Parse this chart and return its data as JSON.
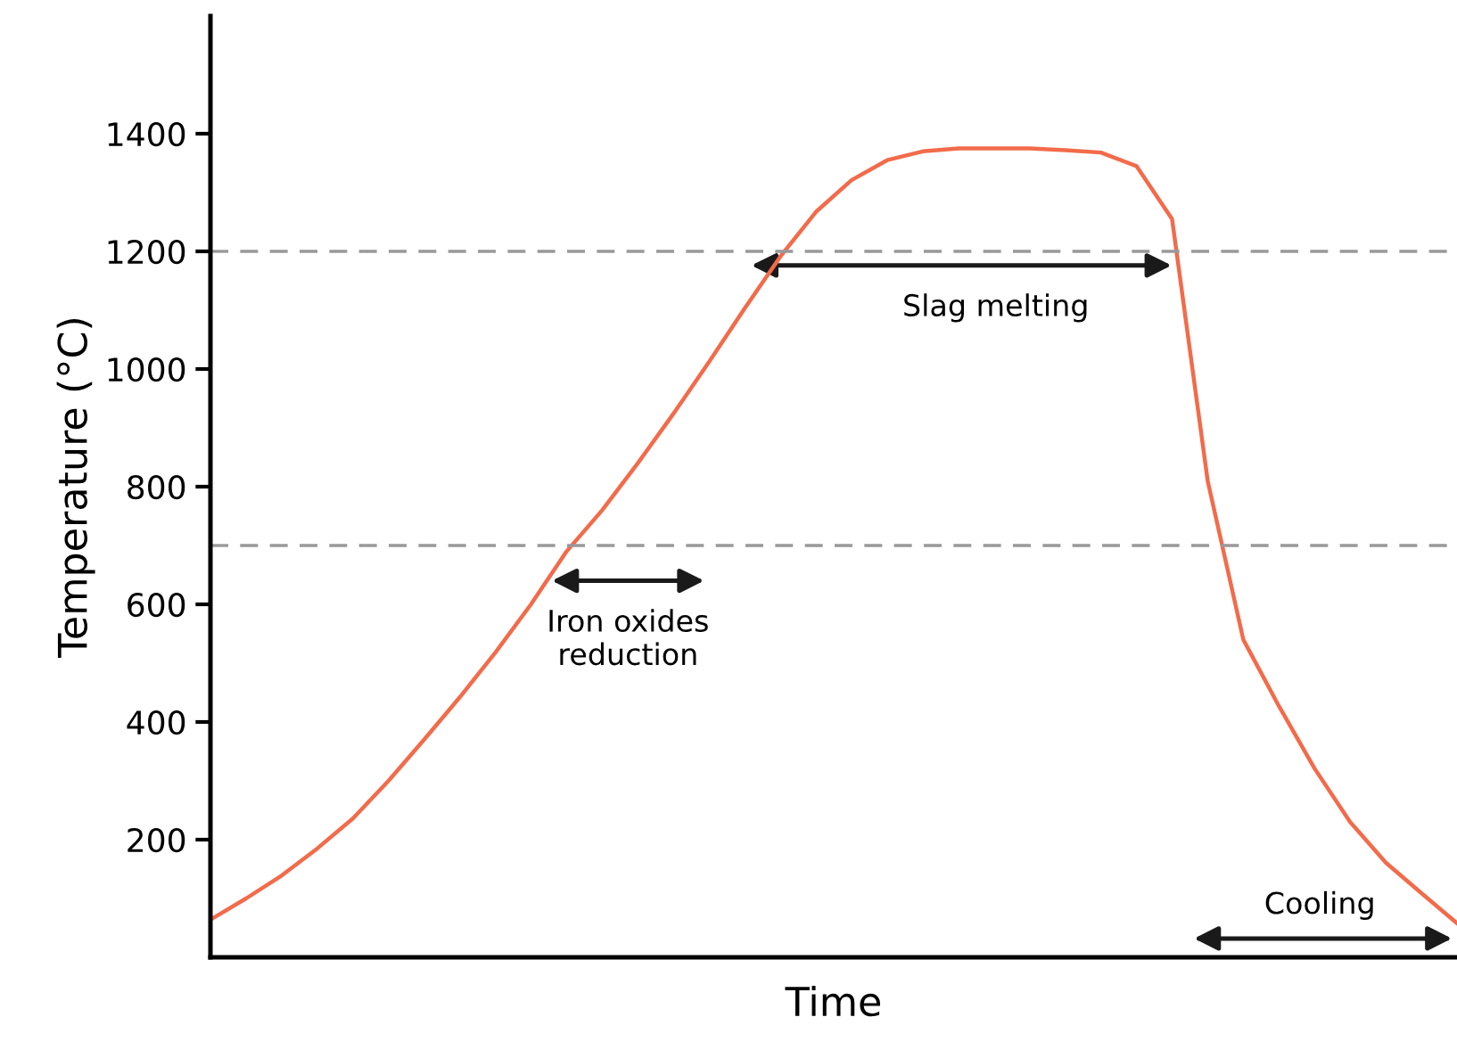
{
  "chart_data": {
    "type": "line",
    "xlabel": "Time",
    "ylabel": "Temperature (°C)",
    "categories": [
      null,
      null,
      null,
      null,
      null,
      null,
      null,
      null,
      null,
      null,
      null,
      null,
      null,
      null,
      null,
      null,
      null,
      null,
      null,
      null,
      null,
      null,
      null,
      null,
      null,
      null,
      null,
      null,
      null,
      null,
      null,
      null,
      null,
      null,
      null,
      null
    ],
    "series": [
      {
        "color": "#f26b4a",
        "values": [
          64,
          100,
          139,
          185,
          236,
          300,
          370,
          442,
          518,
          600,
          690,
          760,
          840,
          924,
          1012,
          1103,
          1191,
          1267,
          1321,
          1355,
          1370,
          1375,
          1375,
          1375,
          1372,
          1368,
          1345,
          1255,
          810,
          540,
          427,
          321,
          230,
          161,
          109,
          58
        ]
      }
    ],
    "ylim": [
      0,
      1600
    ],
    "yticks": [
      200,
      400,
      600,
      800,
      1000,
      1200,
      1400
    ],
    "ref_lines": [
      {
        "axis": "y",
        "value": 1200,
        "color": "#999999",
        "line_style": "dashed"
      },
      {
        "axis": "y",
        "value": 700,
        "color": "#999999",
        "line_style": "dashed"
      }
    ],
    "annotations": [
      "Iron oxides\nreduction",
      "Slag melting",
      "Cooling"
    ],
    "grid": false,
    "legend": false,
    "marker": "none",
    "line_style": "solid"
  }
}
